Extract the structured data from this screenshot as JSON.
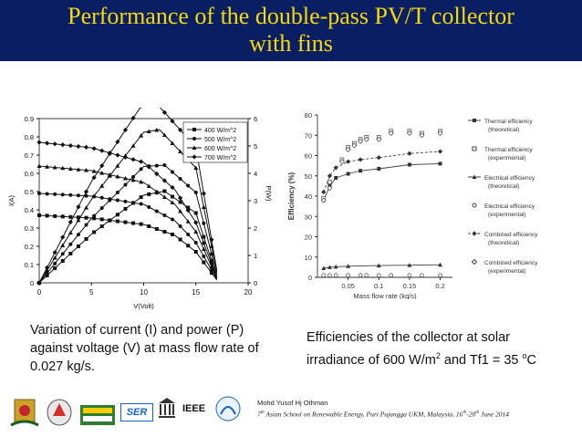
{
  "slide": {
    "title_line1": "Performance of the double-pass PV/T collector",
    "title_line2": "with fins",
    "caption_left_l1": "Variation of current (I) and power (P)",
    "caption_left_l2": "against voltage (V) at mass flow rate of",
    "caption_left_l3": "0.027 kg/s.",
    "caption_right_l1": "Efficiencies of the collector at solar",
    "caption_right_l2a": "irradiance of 600 W/m",
    "caption_right_sup1": "2",
    "caption_right_l2b": " and Tf1 = 35 ",
    "caption_right_sup2": "o",
    "caption_right_l2c": "C",
    "footer_name": "Mohd Yusof Hj Othman",
    "footer_event_a": "7",
    "footer_event_sup1": "th",
    "footer_event_b": " Asian School on Renewable Energy, Puri Pujangga UKM, Malaysia, 16",
    "footer_event_sup2": "th",
    "footer_event_c": "-20",
    "footer_event_sup3": "th",
    "footer_event_d": " June 2014",
    "footer_logo_ieee": "IEEE",
    "footer_logo_ser": "SER"
  },
  "colors": {
    "title_bg": "#0a1f63",
    "title_text": "#f5d90a"
  },
  "chart_data": [
    {
      "type": "line",
      "xlabel": "V(Volt)",
      "ylabel": "I(A)",
      "y2label": "P(W)",
      "xlim": [
        0,
        20
      ],
      "ylim": [
        0,
        0.9
      ],
      "y2lim": [
        0,
        6
      ],
      "x_ticks": [
        "0",
        "5",
        "10",
        "15",
        "20"
      ],
      "y_ticks": [
        "0",
        "0.1",
        "0.2",
        "0.3",
        "0.4",
        "0.5",
        "0.6",
        "0.7",
        "0.8",
        "0.9"
      ],
      "y2_ticks": [
        "0",
        "1",
        "2",
        "3",
        "4",
        "5",
        "6"
      ],
      "legend_position": "top-right",
      "grid": false,
      "series": [
        {
          "name": "400 W/m^2",
          "marker": "square",
          "current": [
            [
              0,
              0.37
            ],
            [
              5,
              0.355
            ],
            [
              10,
              0.32
            ],
            [
              13,
              0.26
            ],
            [
              15,
              0.17
            ],
            [
              17.2,
              0
            ]
          ],
          "power": [
            [
              0,
              0
            ],
            [
              5,
              1.78
            ],
            [
              10,
              3.2
            ],
            [
              12,
              3.35
            ],
            [
              15,
              2.55
            ],
            [
              17.2,
              0
            ]
          ]
        },
        {
          "name": "500 W/m^2",
          "marker": "circle",
          "current": [
            [
              0,
              0.49
            ],
            [
              5,
              0.475
            ],
            [
              10,
              0.43
            ],
            [
              13,
              0.34
            ],
            [
              15,
              0.22
            ],
            [
              17.2,
              0
            ]
          ],
          "power": [
            [
              0,
              0
            ],
            [
              5,
              2.35
            ],
            [
              10,
              4.25
            ],
            [
              12,
              4.3
            ],
            [
              15,
              3.3
            ],
            [
              17.2,
              0
            ]
          ]
        },
        {
          "name": "600 W/m^2",
          "marker": "triangle",
          "current": [
            [
              0,
              0.64
            ],
            [
              5,
              0.615
            ],
            [
              10,
              0.55
            ],
            [
              13,
              0.43
            ],
            [
              15,
              0.28
            ],
            [
              17.2,
              0
            ]
          ],
          "power": [
            [
              0,
              0
            ],
            [
              5,
              3.05
            ],
            [
              10,
              5.5
            ],
            [
              11.5,
              5.6
            ],
            [
              15,
              4.2
            ],
            [
              17.2,
              0
            ]
          ]
        },
        {
          "name": "700 W/m^2",
          "marker": "diamond",
          "current": [
            [
              0,
              0.77
            ],
            [
              5,
              0.74
            ],
            [
              10,
              0.66
            ],
            [
              13,
              0.51
            ],
            [
              15,
              0.33
            ],
            [
              17.2,
              0
            ]
          ],
          "power": [
            [
              0,
              0
            ],
            [
              5,
              3.7
            ],
            [
              10,
              6.6
            ],
            [
              11,
              6.65
            ],
            [
              15,
              4.95
            ],
            [
              17.2,
              0
            ]
          ]
        }
      ]
    },
    {
      "type": "line",
      "xlabel": "Mass flow rate (kg/s)",
      "ylabel": "Efficiency (%)",
      "xlim": [
        0,
        0.22
      ],
      "ylim": [
        0,
        80
      ],
      "x_ticks": [
        "0.05",
        "0.1",
        "0.15",
        "0.2"
      ],
      "y_ticks": [
        "0",
        "10",
        "20",
        "30",
        "40",
        "50",
        "60",
        "70",
        "80"
      ],
      "legend_position": "right",
      "grid": false,
      "series": [
        {
          "name": "Thermal efficiency (theoretical)",
          "points": [
            [
              0.01,
              38
            ],
            [
              0.02,
              45
            ],
            [
              0.03,
              49
            ],
            [
              0.05,
              51
            ],
            [
              0.07,
              52.5
            ],
            [
              0.1,
              53.5
            ],
            [
              0.15,
              55.5
            ],
            [
              0.2,
              56
            ]
          ]
        },
        {
          "name": "Thermal efficiency (experimental)",
          "points": [
            [
              0.01,
              39
            ],
            [
              0.02,
              47
            ],
            [
              0.04,
              58
            ],
            [
              0.05,
              64
            ],
            [
              0.06,
              66
            ],
            [
              0.07,
              68
            ],
            [
              0.08,
              69
            ],
            [
              0.1,
              69
            ],
            [
              0.12,
              72
            ],
            [
              0.15,
              72
            ],
            [
              0.17,
              71
            ],
            [
              0.2,
              72
            ]
          ]
        },
        {
          "name": "Electrical efficiency (theoretical)",
          "points": [
            [
              0.01,
              4.5
            ],
            [
              0.02,
              5
            ],
            [
              0.03,
              5.2
            ],
            [
              0.05,
              5.5
            ],
            [
              0.1,
              5.8
            ],
            [
              0.15,
              6
            ],
            [
              0.2,
              6.2
            ]
          ]
        },
        {
          "name": "Electrical efficiency (experimental)",
          "points": [
            [
              0.01,
              1
            ],
            [
              0.02,
              1
            ],
            [
              0.03,
              1
            ],
            [
              0.05,
              1
            ],
            [
              0.07,
              1
            ],
            [
              0.08,
              1
            ],
            [
              0.1,
              1
            ],
            [
              0.12,
              1
            ],
            [
              0.15,
              1
            ],
            [
              0.17,
              1
            ],
            [
              0.2,
              1
            ]
          ]
        },
        {
          "name": "Combined efficiency (theoretical)",
          "points": [
            [
              0.01,
              42
            ],
            [
              0.02,
              50
            ],
            [
              0.03,
              54
            ],
            [
              0.05,
              57
            ],
            [
              0.07,
              58
            ],
            [
              0.1,
              59
            ],
            [
              0.15,
              61
            ],
            [
              0.2,
              62
            ]
          ]
        },
        {
          "name": "Combined efficiency (experimental)",
          "points": [
            [
              0.01,
              38
            ],
            [
              0.02,
              44
            ],
            [
              0.04,
              57
            ],
            [
              0.05,
              63
            ],
            [
              0.06,
              65
            ],
            [
              0.07,
              67
            ],
            [
              0.08,
              68
            ],
            [
              0.1,
              68
            ],
            [
              0.12,
              71
            ],
            [
              0.15,
              71
            ],
            [
              0.17,
              70
            ],
            [
              0.2,
              71
            ]
          ]
        }
      ]
    }
  ]
}
